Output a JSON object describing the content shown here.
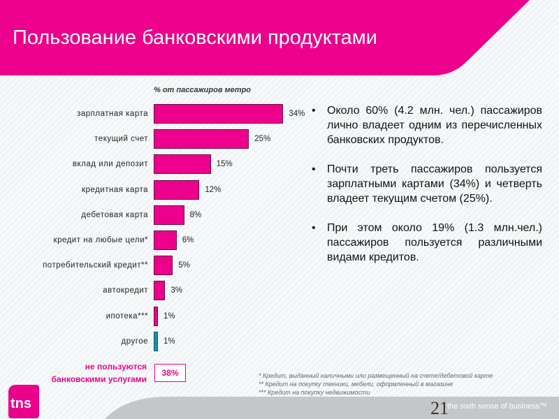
{
  "header": {
    "title": "Пользование банковскими продуктами"
  },
  "chart_data": {
    "type": "bar",
    "orientation": "horizontal",
    "subtitle": "% от пассажиров метро",
    "categories": [
      "зарплатная карта",
      "текущий счет",
      "вклад или депозит",
      "кредитная карта",
      "дебетовая карта",
      "кредит на любые цели*",
      "потребительский кредит**",
      "автокредит",
      "ипотека***",
      "другое"
    ],
    "values": [
      34,
      25,
      15,
      12,
      8,
      6,
      5,
      3,
      1,
      1
    ],
    "value_labels": [
      "34%",
      "25%",
      "15%",
      "12%",
      "8%",
      "6%",
      "5%",
      "3%",
      "1%",
      "1%"
    ],
    "colors": [
      "#ec008c",
      "#ec008c",
      "#ec008c",
      "#ec008c",
      "#ec008c",
      "#ec008c",
      "#ec008c",
      "#ec008c",
      "#ec008c",
      "#1e8fa8"
    ],
    "not_using": {
      "label_line1": "не пользуются",
      "label_line2": "банковскими услугами",
      "value": "38%"
    }
  },
  "bullets": [
    "Около 60% (4.2 млн. чел.) пассажиров лично владеет одним из перечисленных банковских продуктов.",
    "Почти треть пассажиров пользуется зарплатными картами (34%) и четверть владеет текущим счетом (25%).",
    "При этом около 19% (1.3 млн.чел.) пассажиров пользуется различными видами кредитов."
  ],
  "footnotes": [
    "* Кредит, выданный наличными или размещенный на счете/дебетовой карте",
    "**  Кредит на покупку техники, мебели, оформленный в магазине",
    "*** Кредит на покупку недвижимости"
  ],
  "footer": {
    "logo": "tns",
    "tagline": "the sixth sense of business™",
    "page": "21"
  }
}
